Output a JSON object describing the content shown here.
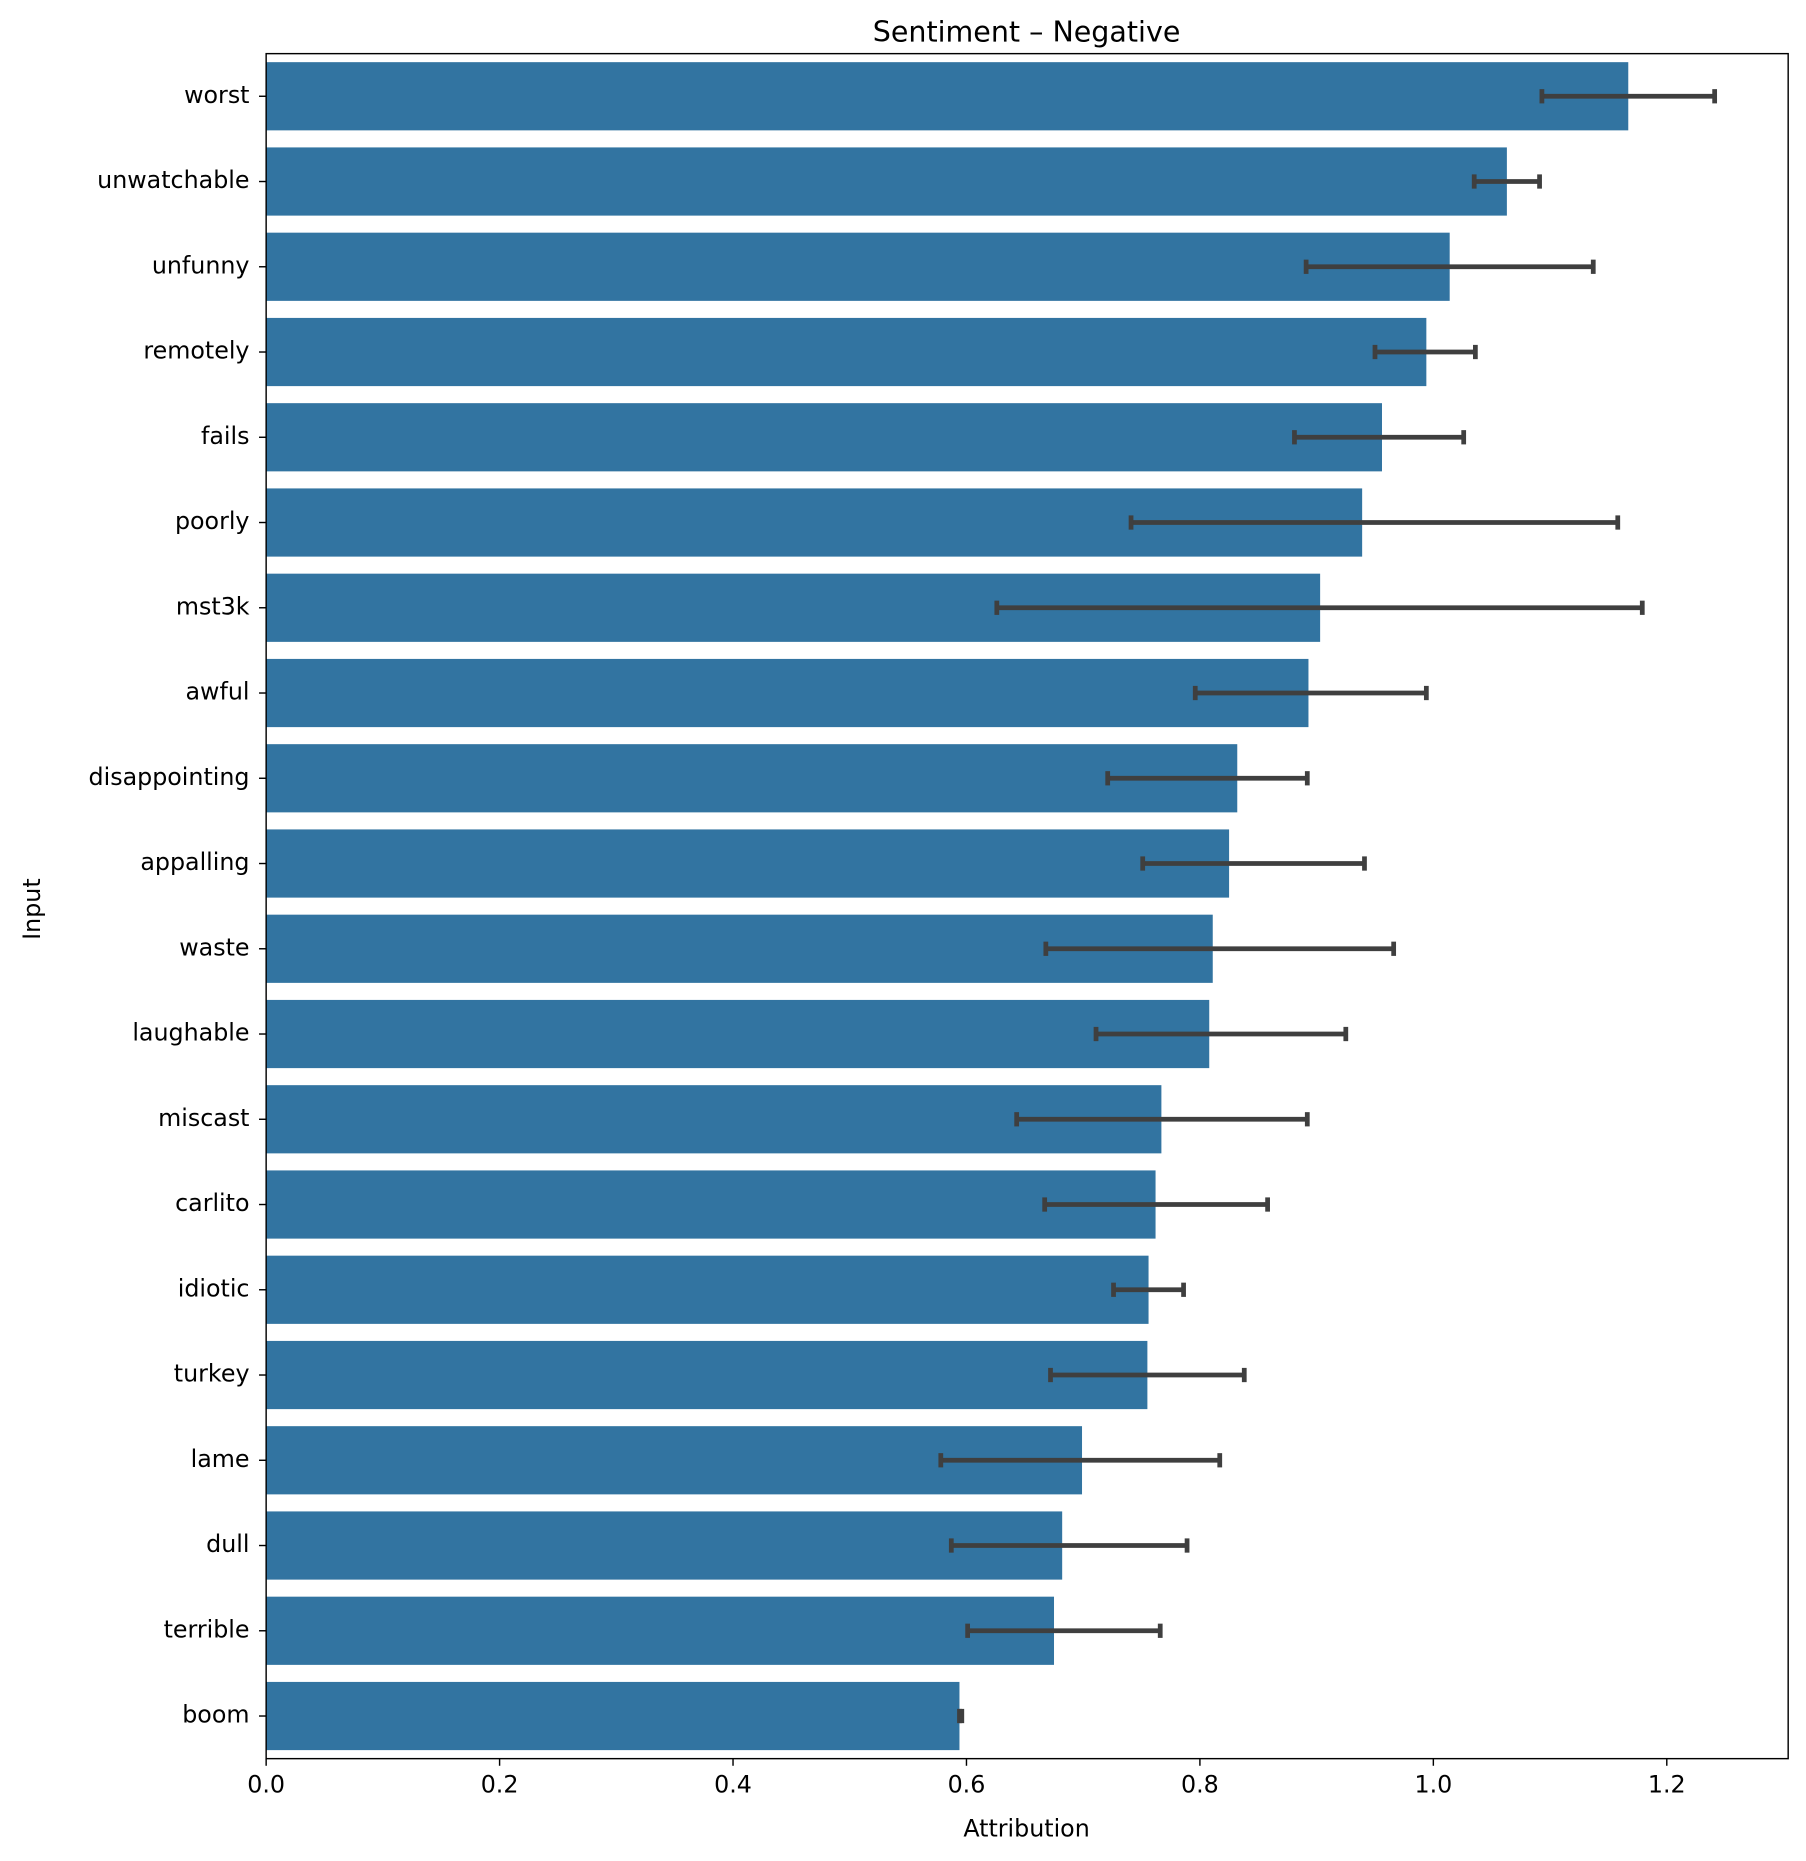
{
  "chart_data": {
    "type": "barh",
    "title": "Sentiment – Negative",
    "xlabel": "Attribution",
    "ylabel": "Input",
    "categories": [
      "worst",
      "unwatchable",
      "unfunny",
      "remotely",
      "fails",
      "poorly",
      "mst3k",
      "awful",
      "disappointing",
      "appalling",
      "waste",
      "laughable",
      "miscast",
      "carlito",
      "idiotic",
      "turkey",
      "lame",
      "dull",
      "terrible",
      "boom"
    ],
    "values": [
      1.167,
      1.063,
      1.014,
      0.994,
      0.956,
      0.939,
      0.903,
      0.893,
      0.832,
      0.825,
      0.811,
      0.808,
      0.767,
      0.762,
      0.756,
      0.755,
      0.699,
      0.682,
      0.675,
      0.594
    ],
    "ci_low": [
      1.093,
      1.035,
      0.891,
      0.95,
      0.881,
      0.741,
      0.626,
      0.796,
      0.721,
      0.751,
      0.668,
      0.711,
      0.643,
      0.667,
      0.726,
      0.672,
      0.578,
      0.587,
      0.601,
      0.594
    ],
    "ci_high": [
      1.241,
      1.091,
      1.137,
      1.036,
      1.026,
      1.158,
      1.179,
      0.994,
      0.892,
      0.941,
      0.966,
      0.925,
      0.892,
      0.858,
      0.786,
      0.838,
      0.817,
      0.789,
      0.766,
      0.596
    ],
    "color": "#3274a1",
    "error_color": "#3f3f3f",
    "xlim": [
      0,
      1.304
    ],
    "xticks": [
      {
        "value": 0,
        "label": "0.0"
      },
      0.2,
      0.4,
      0.6,
      0.8,
      {
        "value": 1,
        "label": "1.0"
      },
      1.2
    ]
  }
}
